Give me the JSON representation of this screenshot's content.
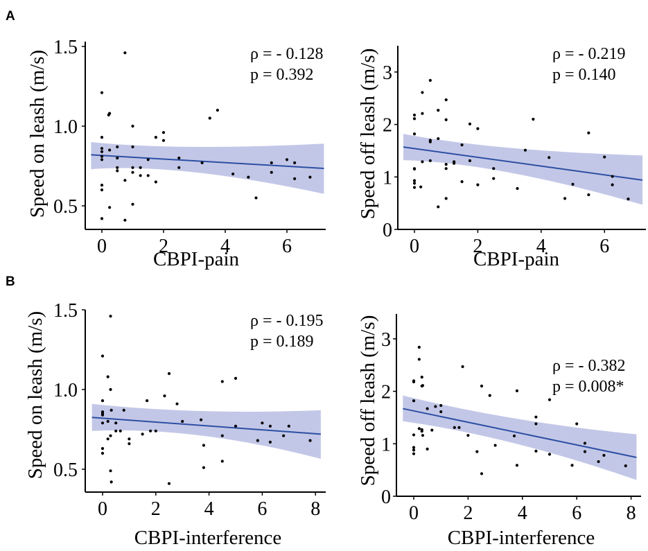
{
  "figure": {
    "panel_letters": [
      "A",
      "B"
    ]
  },
  "chart_data": [
    {
      "id": "A-on",
      "panel": "A",
      "type": "scatter",
      "xlabel": "CBPI-pain",
      "ylabel": "Speed on leash (m/s)",
      "xlim": [
        -0.35,
        7.2
      ],
      "ylim": [
        0.37,
        1.5
      ],
      "xticks": [
        0,
        2,
        4,
        6
      ],
      "yticks": [
        0.5,
        1.0,
        1.5
      ],
      "ytick_labels": [
        "0.5",
        "1.0",
        "1.5"
      ],
      "grid": false,
      "annotation": [
        "ρ = - 0.128",
        "p = 0.392"
      ],
      "fit": {
        "x": [
          -0.35,
          7.2
        ],
        "y": [
          0.82,
          0.735
        ]
      },
      "ci": {
        "x": [
          -0.35,
          2.5,
          7.2
        ],
        "upper": [
          0.9,
          0.845,
          0.89
        ],
        "lower": [
          0.73,
          0.77,
          0.575
        ]
      },
      "points": [
        [
          0,
          1.21
        ],
        [
          0.75,
          1.46
        ],
        [
          0.22,
          1.07
        ],
        [
          0.25,
          1.08
        ],
        [
          0,
          0.93
        ],
        [
          0,
          0.86
        ],
        [
          0,
          0.84
        ],
        [
          0,
          0.81
        ],
        [
          0,
          0.79
        ],
        [
          0.25,
          0.85
        ],
        [
          0.5,
          0.87
        ],
        [
          0.5,
          0.8
        ],
        [
          0.5,
          0.74
        ],
        [
          0.5,
          0.72
        ],
        [
          1,
          1.0
        ],
        [
          1,
          0.87
        ],
        [
          1,
          0.74
        ],
        [
          1,
          0.71
        ],
        [
          0.75,
          0.66
        ],
        [
          0,
          0.63
        ],
        [
          0,
          0.6
        ],
        [
          0.25,
          0.49
        ],
        [
          0,
          0.42
        ],
        [
          0.75,
          0.41
        ],
        [
          1,
          0.51
        ],
        [
          1.25,
          0.74
        ],
        [
          1.25,
          0.69
        ],
        [
          1.5,
          0.79
        ],
        [
          1.5,
          0.69
        ],
        [
          1.75,
          0.93
        ],
        [
          1.75,
          0.65
        ],
        [
          2,
          0.96
        ],
        [
          2,
          0.91
        ],
        [
          2.5,
          0.8
        ],
        [
          2.5,
          0.74
        ],
        [
          3.25,
          0.77
        ],
        [
          3.5,
          1.05
        ],
        [
          3.75,
          1.1
        ],
        [
          4.25,
          0.7
        ],
        [
          4.75,
          0.68
        ],
        [
          5,
          0.55
        ],
        [
          5.5,
          0.77
        ],
        [
          5.5,
          0.71
        ],
        [
          6,
          0.79
        ],
        [
          6.25,
          0.77
        ],
        [
          6.25,
          0.67
        ],
        [
          6.75,
          0.68
        ]
      ]
    },
    {
      "id": "A-off",
      "panel": "A",
      "type": "scatter",
      "xlabel": "CBPI-pain",
      "ylabel": "Speed off leash (m/s)",
      "xlim": [
        -0.35,
        7.2
      ],
      "ylim": [
        0,
        3.5
      ],
      "xticks": [
        0,
        2,
        4,
        6
      ],
      "yticks": [
        0,
        1,
        2,
        3
      ],
      "ytick_labels": [
        "0",
        "1",
        "2",
        "3"
      ],
      "grid": false,
      "annotation": [
        "ρ = - 0.219",
        "p = 0.140"
      ],
      "fit": {
        "x": [
          -0.35,
          7.2
        ],
        "y": [
          1.57,
          0.94
        ]
      },
      "ci": {
        "x": [
          -0.35,
          2.5,
          7.2
        ],
        "upper": [
          1.82,
          1.5,
          1.41
        ],
        "lower": [
          1.32,
          1.28,
          0.47
        ]
      },
      "points": [
        [
          0,
          2.18
        ],
        [
          0,
          2.11
        ],
        [
          0,
          1.82
        ],
        [
          0,
          1.16
        ],
        [
          0,
          1.15
        ],
        [
          0,
          0.93
        ],
        [
          0,
          0.88
        ],
        [
          0,
          0.8
        ],
        [
          0.2,
          0.81
        ],
        [
          0.25,
          2.61
        ],
        [
          0.25,
          2.21
        ],
        [
          0.25,
          1.29
        ],
        [
          0.5,
          2.84
        ],
        [
          0.5,
          1.7
        ],
        [
          0.5,
          1.67
        ],
        [
          0.5,
          1.31
        ],
        [
          0.75,
          2.27
        ],
        [
          0.75,
          1.73
        ],
        [
          0.75,
          0.43
        ],
        [
          1,
          2.47
        ],
        [
          1,
          2.09
        ],
        [
          1,
          1.24
        ],
        [
          1,
          1.16
        ],
        [
          1,
          0.59
        ],
        [
          1.25,
          1.29
        ],
        [
          1.25,
          1.26
        ],
        [
          1.5,
          1.61
        ],
        [
          1.5,
          0.91
        ],
        [
          1.75,
          2.01
        ],
        [
          1.75,
          1.31
        ],
        [
          2,
          1.92
        ],
        [
          2,
          0.85
        ],
        [
          2.5,
          1.16
        ],
        [
          2.5,
          0.97
        ],
        [
          3.25,
          0.78
        ],
        [
          3.5,
          1.51
        ],
        [
          3.75,
          2.1
        ],
        [
          4.25,
          1.37
        ],
        [
          4.75,
          0.59
        ],
        [
          5,
          0.86
        ],
        [
          5.5,
          1.84
        ],
        [
          5.5,
          0.66
        ],
        [
          6,
          1.38
        ],
        [
          6.25,
          1.01
        ],
        [
          6.25,
          0.85
        ],
        [
          6.75,
          0.58
        ]
      ]
    },
    {
      "id": "B-on",
      "panel": "B",
      "type": "scatter",
      "xlabel": "CBPI-interference",
      "ylabel": "Speed on leash (m/s)",
      "xlim": [
        -0.4,
        8.2
      ],
      "ylim": [
        0.4,
        1.5
      ],
      "xticks": [
        0,
        2,
        4,
        6,
        8
      ],
      "yticks": [
        0.5,
        1.0,
        1.5
      ],
      "ytick_labels": [
        "0.5",
        "1.0",
        "1.5"
      ],
      "grid": false,
      "annotation": [
        "ρ = - 0.195",
        "p = 0.189"
      ],
      "fit": {
        "x": [
          -0.4,
          8.2
        ],
        "y": [
          0.825,
          0.72
        ]
      },
      "ci": {
        "x": [
          -0.4,
          3.5,
          8.2
        ],
        "upper": [
          0.91,
          0.84,
          0.87
        ],
        "lower": [
          0.74,
          0.77,
          0.565
        ]
      },
      "points": [
        [
          0,
          1.21
        ],
        [
          0.3,
          1.46
        ],
        [
          0.2,
          1.08
        ],
        [
          0.3,
          1.0
        ],
        [
          0,
          0.93
        ],
        [
          0,
          0.86
        ],
        [
          0,
          0.85
        ],
        [
          0,
          0.84
        ],
        [
          0,
          0.79
        ],
        [
          0.2,
          0.8
        ],
        [
          0.33,
          0.87
        ],
        [
          0.5,
          0.79
        ],
        [
          0.5,
          0.74
        ],
        [
          0.67,
          0.74
        ],
        [
          0.8,
          0.87
        ],
        [
          0.3,
          0.71
        ],
        [
          0.2,
          0.69
        ],
        [
          1,
          0.69
        ],
        [
          1,
          0.66
        ],
        [
          0,
          0.63
        ],
        [
          0,
          0.6
        ],
        [
          0.3,
          0.49
        ],
        [
          0.33,
          0.42
        ],
        [
          1.5,
          0.72
        ],
        [
          1.67,
          0.93
        ],
        [
          1.8,
          0.74
        ],
        [
          2,
          0.74
        ],
        [
          2.33,
          0.96
        ],
        [
          2.5,
          1.1
        ],
        [
          2.8,
          0.91
        ],
        [
          3,
          0.8
        ],
        [
          2.5,
          0.41
        ],
        [
          3.7,
          0.81
        ],
        [
          3.8,
          0.65
        ],
        [
          3.8,
          0.51
        ],
        [
          4.5,
          1.05
        ],
        [
          4.5,
          0.71
        ],
        [
          4.5,
          0.55
        ],
        [
          5,
          1.07
        ],
        [
          5,
          0.77
        ],
        [
          5.83,
          0.68
        ],
        [
          6,
          0.79
        ],
        [
          6.3,
          0.77
        ],
        [
          6.3,
          0.67
        ],
        [
          6.8,
          0.71
        ],
        [
          7,
          0.77
        ],
        [
          7.8,
          0.68
        ]
      ]
    },
    {
      "id": "B-off",
      "panel": "B",
      "type": "scatter",
      "xlabel": "CBPI-interference",
      "ylabel": "Speed off leash (m/s)",
      "xlim": [
        -0.4,
        8.2
      ],
      "ylim": [
        0,
        3.5
      ],
      "xticks": [
        0,
        2,
        4,
        6,
        8
      ],
      "yticks": [
        0,
        1,
        2,
        3
      ],
      "ytick_labels": [
        "0",
        "1",
        "2",
        "3"
      ],
      "grid": false,
      "annotation": [
        "ρ = - 0.382",
        "p = 0.008*"
      ],
      "fit": {
        "x": [
          -0.4,
          8.2
        ],
        "y": [
          1.67,
          0.74
        ]
      },
      "ci": {
        "x": [
          -0.4,
          3.5,
          8.2
        ],
        "upper": [
          1.92,
          1.42,
          1.18
        ],
        "lower": [
          1.43,
          1.15,
          0.31
        ]
      },
      "points": [
        [
          0,
          2.2
        ],
        [
          0,
          2.18
        ],
        [
          0,
          1.82
        ],
        [
          0,
          1.17
        ],
        [
          0,
          0.93
        ],
        [
          0,
          0.88
        ],
        [
          0,
          0.81
        ],
        [
          0.2,
          2.84
        ],
        [
          0.2,
          2.61
        ],
        [
          0.3,
          2.27
        ],
        [
          0.3,
          2.1
        ],
        [
          0.33,
          2.11
        ],
        [
          0.2,
          1.29
        ],
        [
          0.3,
          1.27
        ],
        [
          0.3,
          1.24
        ],
        [
          0.33,
          1.16
        ],
        [
          0.5,
          1.67
        ],
        [
          0.5,
          0.9
        ],
        [
          0.67,
          1.26
        ],
        [
          0.8,
          1.71
        ],
        [
          1,
          1.73
        ],
        [
          1,
          1.61
        ],
        [
          1.5,
          1.31
        ],
        [
          1.67,
          1.31
        ],
        [
          1.8,
          2.47
        ],
        [
          2,
          1.16
        ],
        [
          2.33,
          0.85
        ],
        [
          2.5,
          2.1
        ],
        [
          2.5,
          0.43
        ],
        [
          2.8,
          1.92
        ],
        [
          3,
          0.97
        ],
        [
          3.7,
          1.15
        ],
        [
          3.8,
          2.01
        ],
        [
          3.8,
          0.59
        ],
        [
          4.5,
          1.51
        ],
        [
          4.5,
          1.38
        ],
        [
          4.5,
          0.86
        ],
        [
          5,
          1.84
        ],
        [
          5,
          0.8
        ],
        [
          5.83,
          0.59
        ],
        [
          6,
          1.38
        ],
        [
          6.3,
          1.01
        ],
        [
          6.3,
          0.85
        ],
        [
          6.8,
          0.66
        ],
        [
          7,
          0.78
        ],
        [
          7.8,
          0.58
        ]
      ]
    }
  ]
}
